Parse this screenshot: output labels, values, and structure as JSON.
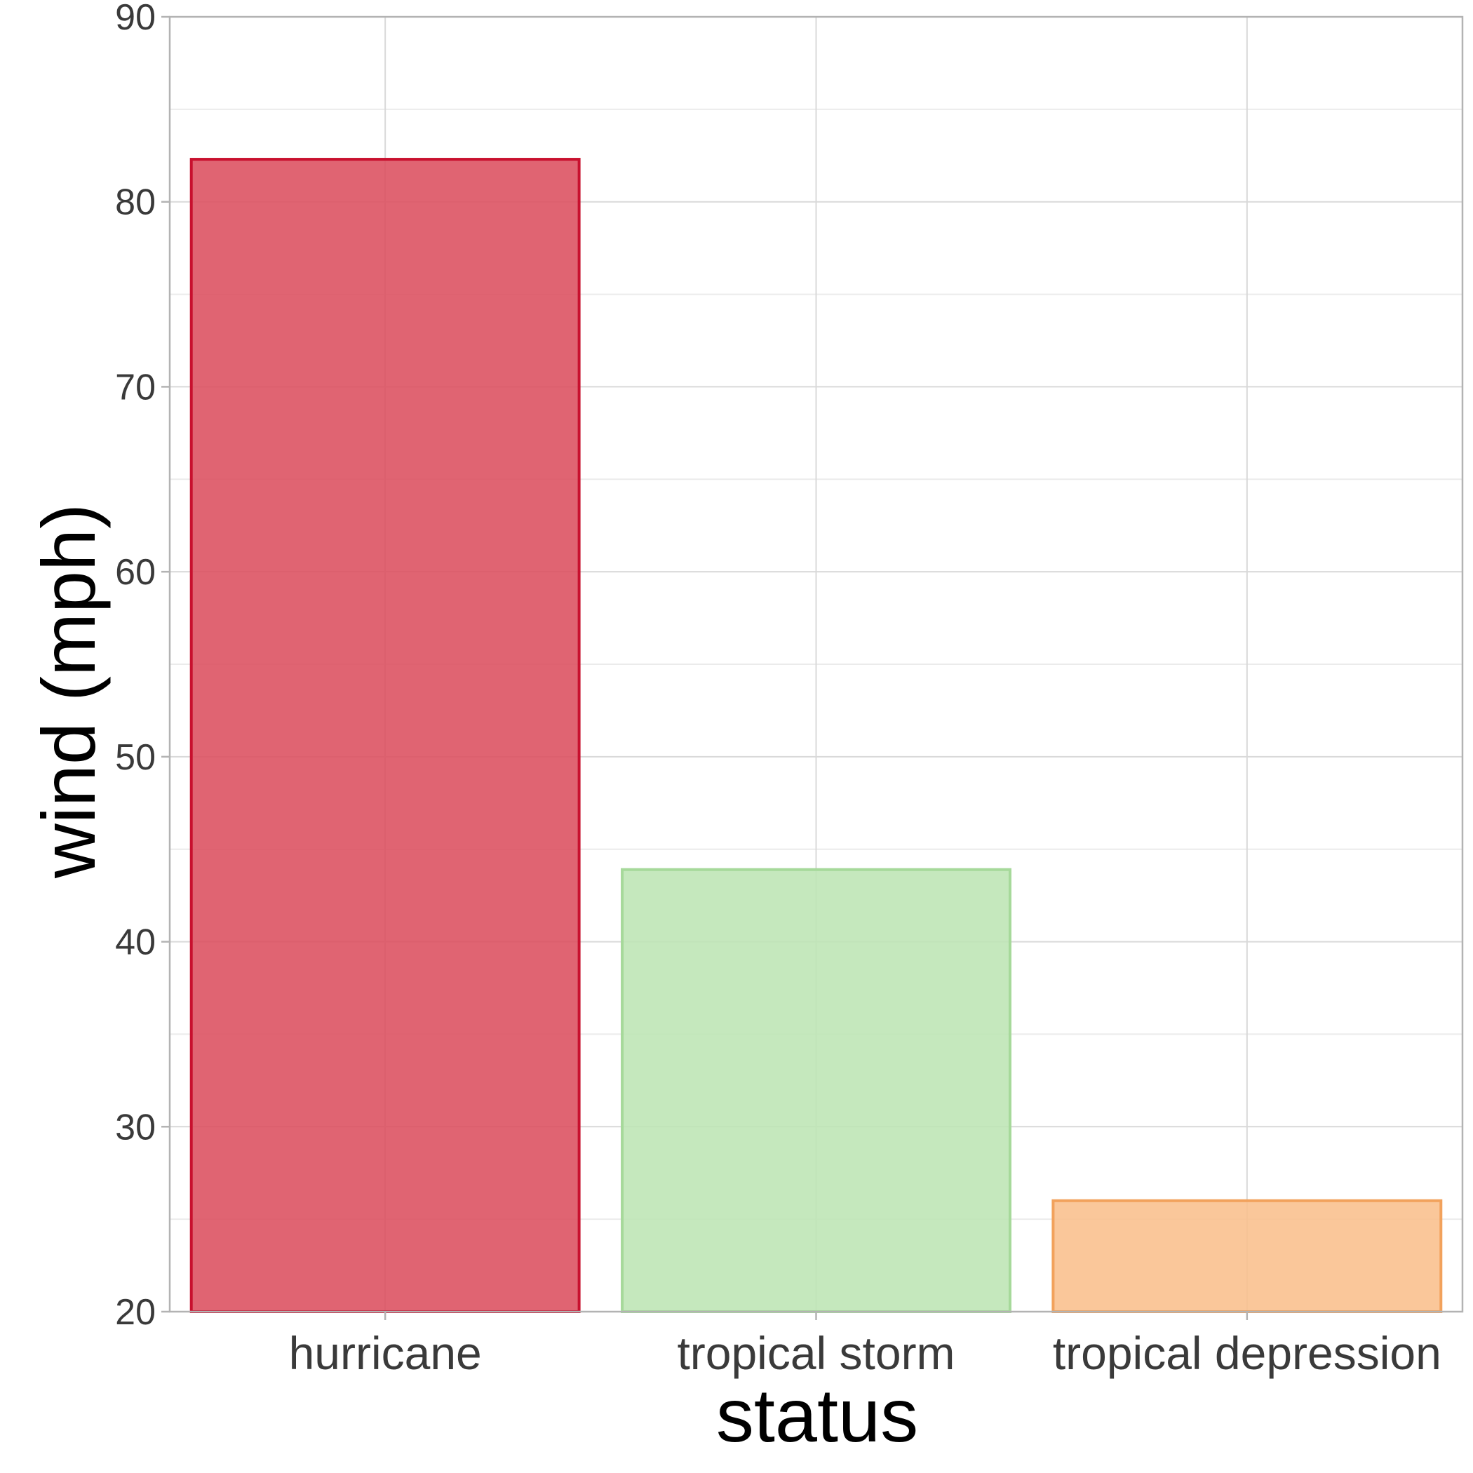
{
  "chart_data": {
    "type": "bar",
    "title": "",
    "xlabel": "status",
    "ylabel": "wind (mph)",
    "categories": [
      "hurricane",
      "tropical storm",
      "tropical depression"
    ],
    "values": [
      82.3,
      43.9,
      26.0
    ],
    "ylim": [
      20,
      90
    ],
    "yticks": [
      20,
      30,
      40,
      50,
      60,
      70,
      80,
      90
    ],
    "grid": true,
    "legend": "none",
    "colors": {
      "fill": [
        "#dc4e5e",
        "#bde5b4",
        "#f9bf8c"
      ],
      "stroke": [
        "#c8102e",
        "#a6d99a",
        "#f2a25c"
      ]
    }
  }
}
